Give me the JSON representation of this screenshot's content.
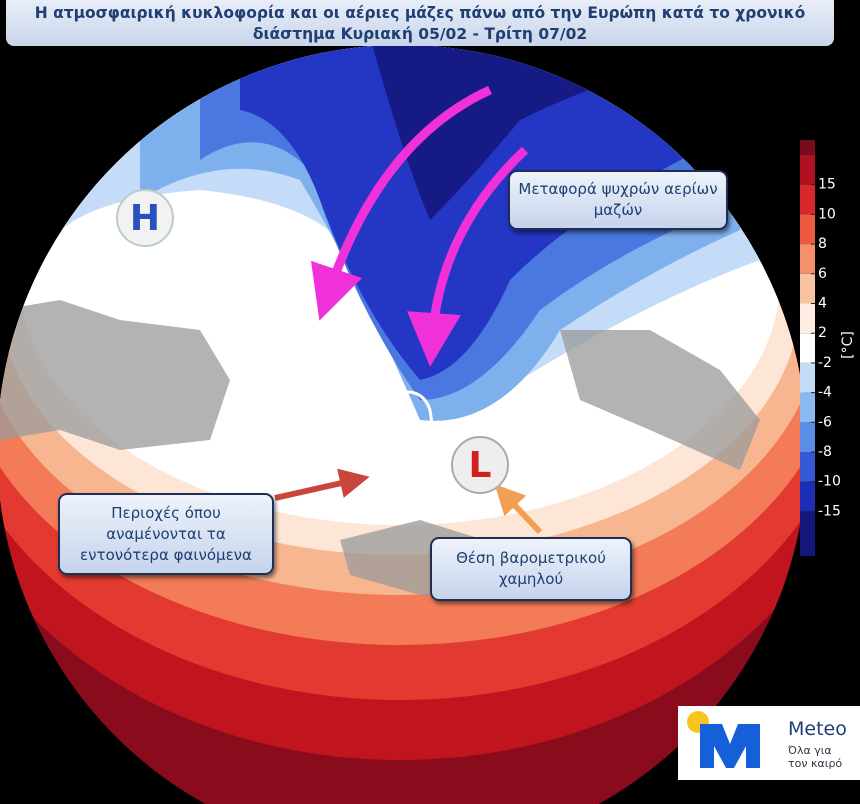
{
  "title": "Η ατμοσφαιρική κυκλοφορία και οι αέριες μάζες πάνω από την Ευρώπη κατά το χρονικό διάστημα Κυριακή 05/02 - Τρίτη 07/02",
  "map": {
    "high_label": "H",
    "low_label": "L",
    "annotations": [
      "Μεταφορά ψυχρών αερίων μαζών",
      "Περιοχές όπου αναμένονται τα εντονότερα φαινόμενα",
      "Θέση βαρομετρικού χαμηλού"
    ]
  },
  "colorbar": {
    "unit": "[°C]",
    "ticks": [
      15,
      10,
      8,
      6,
      4,
      2,
      -2,
      -4,
      -6,
      -8,
      -10,
      -15
    ],
    "colors": [
      "#7a0a1e",
      "#b0101f",
      "#d8262a",
      "#ec5a3f",
      "#f4916c",
      "#f9c3a3",
      "#fdece2",
      "#ffffff",
      "#c4dcf7",
      "#8cb8f0",
      "#5a8de6",
      "#3558d4",
      "#1d2eb5",
      "#14177a"
    ]
  },
  "logo": {
    "brand": "Meteo",
    "slogan_lines": [
      "Όλα για",
      "τον καιρό"
    ]
  }
}
